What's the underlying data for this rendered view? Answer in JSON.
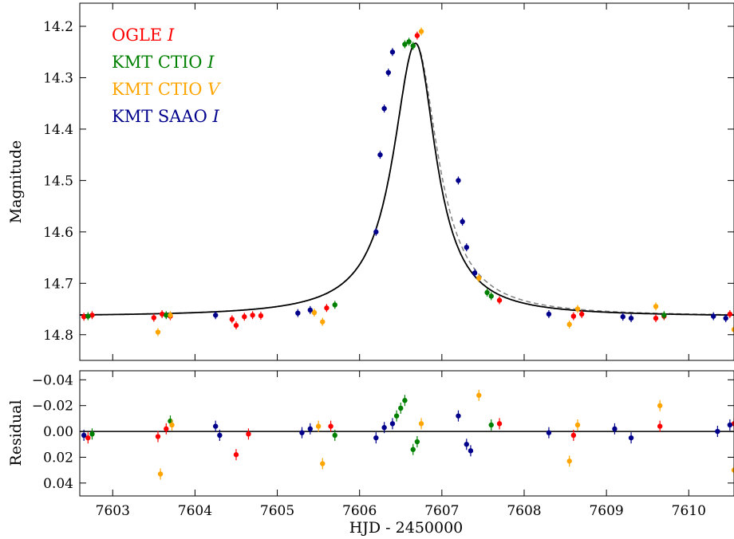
{
  "chart_data": {
    "type": "scatter",
    "xlabel": "HJD - 2450000",
    "xlim": [
      7602.6,
      7610.55
    ],
    "x_ticks": [
      "7603",
      "7604",
      "7605",
      "7606",
      "7607",
      "7608",
      "7609",
      "7610"
    ],
    "legend_placement": "top-left",
    "series": [
      {
        "name": "OGLE",
        "italic": "I",
        "color": "#ff0000"
      },
      {
        "name": "KMT CTIO",
        "italic": "I",
        "color": "#008000"
      },
      {
        "name": "KMT CTIO",
        "italic": "V",
        "color": "#ffa500"
      },
      {
        "name": "KMT SAAO",
        "italic": "I",
        "color": "#00008b"
      }
    ],
    "panels": [
      {
        "id": "light-curve",
        "ylabel": "Magnitude",
        "ylim": [
          14.85,
          14.155
        ],
        "inverted": true,
        "y_ticks": [
          "14.2",
          "14.3",
          "14.4",
          "14.5",
          "14.6",
          "14.7",
          "14.8"
        ],
        "model": {
          "baseline": 14.765,
          "peak_time": 7606.68,
          "peak_mag": 14.233,
          "width_before": 0.33,
          "width_after": 0.3,
          "color_solid": "#000000",
          "color_dashed": "#808080"
        },
        "data": [
          {
            "series": 0,
            "x": 7602.65,
            "y": 14.765
          },
          {
            "series": 0,
            "x": 7602.75,
            "y": 14.762
          },
          {
            "series": 0,
            "x": 7603.5,
            "y": 14.767
          },
          {
            "series": 0,
            "x": 7603.6,
            "y": 14.76
          },
          {
            "series": 0,
            "x": 7603.7,
            "y": 14.764
          },
          {
            "series": 0,
            "x": 7604.45,
            "y": 14.77
          },
          {
            "series": 0,
            "x": 7604.5,
            "y": 14.782
          },
          {
            "series": 0,
            "x": 7604.6,
            "y": 14.765
          },
          {
            "series": 0,
            "x": 7604.7,
            "y": 14.762
          },
          {
            "series": 0,
            "x": 7604.8,
            "y": 14.763
          },
          {
            "series": 0,
            "x": 7605.6,
            "y": 14.748
          },
          {
            "series": 0,
            "x": 7606.7,
            "y": 14.218
          },
          {
            "series": 0,
            "x": 7607.7,
            "y": 14.733
          },
          {
            "series": 0,
            "x": 7608.6,
            "y": 14.764
          },
          {
            "series": 0,
            "x": 7608.7,
            "y": 14.76
          },
          {
            "series": 0,
            "x": 7609.6,
            "y": 14.768
          },
          {
            "series": 0,
            "x": 7609.7,
            "y": 14.764
          },
          {
            "series": 0,
            "x": 7610.5,
            "y": 14.76
          },
          {
            "series": 1,
            "x": 7602.7,
            "y": 14.764
          },
          {
            "series": 1,
            "x": 7603.65,
            "y": 14.762
          },
          {
            "series": 1,
            "x": 7605.7,
            "y": 14.742
          },
          {
            "series": 1,
            "x": 7606.55,
            "y": 14.235
          },
          {
            "series": 1,
            "x": 7606.6,
            "y": 14.23
          },
          {
            "series": 1,
            "x": 7606.65,
            "y": 14.238
          },
          {
            "series": 1,
            "x": 7607.55,
            "y": 14.718
          },
          {
            "series": 1,
            "x": 7607.6,
            "y": 14.725
          },
          {
            "series": 1,
            "x": 7609.7,
            "y": 14.762
          },
          {
            "series": 2,
            "x": 7603.55,
            "y": 14.795
          },
          {
            "series": 2,
            "x": 7603.7,
            "y": 14.762
          },
          {
            "series": 2,
            "x": 7605.45,
            "y": 14.757
          },
          {
            "series": 2,
            "x": 7605.55,
            "y": 14.775
          },
          {
            "series": 2,
            "x": 7606.75,
            "y": 14.21
          },
          {
            "series": 2,
            "x": 7607.45,
            "y": 14.69
          },
          {
            "series": 2,
            "x": 7608.55,
            "y": 14.78
          },
          {
            "series": 2,
            "x": 7608.65,
            "y": 14.75
          },
          {
            "series": 2,
            "x": 7609.6,
            "y": 14.745
          },
          {
            "series": 2,
            "x": 7610.55,
            "y": 14.79
          },
          {
            "series": 3,
            "x": 7604.25,
            "y": 14.762
          },
          {
            "series": 3,
            "x": 7605.25,
            "y": 14.758
          },
          {
            "series": 3,
            "x": 7605.4,
            "y": 14.752
          },
          {
            "series": 3,
            "x": 7606.2,
            "y": 14.6
          },
          {
            "series": 3,
            "x": 7606.25,
            "y": 14.45
          },
          {
            "series": 3,
            "x": 7606.3,
            "y": 14.36
          },
          {
            "series": 3,
            "x": 7606.35,
            "y": 14.29
          },
          {
            "series": 3,
            "x": 7606.4,
            "y": 14.25
          },
          {
            "series": 3,
            "x": 7607.2,
            "y": 14.5
          },
          {
            "series": 3,
            "x": 7607.25,
            "y": 14.58
          },
          {
            "series": 3,
            "x": 7607.3,
            "y": 14.63
          },
          {
            "series": 3,
            "x": 7607.4,
            "y": 14.68
          },
          {
            "series": 3,
            "x": 7608.3,
            "y": 14.76
          },
          {
            "series": 3,
            "x": 7609.2,
            "y": 14.765
          },
          {
            "series": 3,
            "x": 7609.3,
            "y": 14.768
          },
          {
            "series": 3,
            "x": 7610.3,
            "y": 14.764
          },
          {
            "series": 3,
            "x": 7610.45,
            "y": 14.768
          }
        ]
      },
      {
        "id": "residual",
        "ylabel": "Residual",
        "ylim": [
          0.05,
          -0.047
        ],
        "inverted": true,
        "y_ticks": [
          "−0.04",
          "−0.02",
          "0.00",
          "0.02",
          "0.04"
        ],
        "data": [
          {
            "series": 0,
            "x": 7602.7,
            "y": 0.005
          },
          {
            "series": 0,
            "x": 7603.55,
            "y": 0.004
          },
          {
            "series": 0,
            "x": 7603.65,
            "y": -0.002
          },
          {
            "series": 0,
            "x": 7604.5,
            "y": 0.018
          },
          {
            "series": 0,
            "x": 7604.65,
            "y": 0.002
          },
          {
            "series": 0,
            "x": 7605.65,
            "y": -0.004
          },
          {
            "series": 0,
            "x": 7607.7,
            "y": -0.006
          },
          {
            "series": 0,
            "x": 7608.6,
            "y": 0.003
          },
          {
            "series": 0,
            "x": 7609.65,
            "y": -0.004
          },
          {
            "series": 0,
            "x": 7610.55,
            "y": -0.006
          },
          {
            "series": 1,
            "x": 7602.75,
            "y": 0.002
          },
          {
            "series": 1,
            "x": 7603.7,
            "y": -0.008
          },
          {
            "series": 1,
            "x": 7605.7,
            "y": 0.003
          },
          {
            "series": 1,
            "x": 7606.45,
            "y": -0.012
          },
          {
            "series": 1,
            "x": 7606.5,
            "y": -0.018
          },
          {
            "series": 1,
            "x": 7606.55,
            "y": -0.024
          },
          {
            "series": 1,
            "x": 7606.65,
            "y": 0.014
          },
          {
            "series": 1,
            "x": 7606.7,
            "y": 0.008
          },
          {
            "series": 1,
            "x": 7607.6,
            "y": -0.005
          },
          {
            "series": 2,
            "x": 7603.58,
            "y": 0.033
          },
          {
            "series": 2,
            "x": 7603.72,
            "y": -0.005
          },
          {
            "series": 2,
            "x": 7605.5,
            "y": -0.004
          },
          {
            "series": 2,
            "x": 7605.55,
            "y": 0.025
          },
          {
            "series": 2,
            "x": 7606.75,
            "y": -0.006
          },
          {
            "series": 2,
            "x": 7607.45,
            "y": -0.028
          },
          {
            "series": 2,
            "x": 7608.55,
            "y": 0.023
          },
          {
            "series": 2,
            "x": 7608.65,
            "y": -0.005
          },
          {
            "series": 2,
            "x": 7609.65,
            "y": -0.02
          },
          {
            "series": 2,
            "x": 7610.55,
            "y": 0.03
          },
          {
            "series": 3,
            "x": 7602.65,
            "y": 0.003
          },
          {
            "series": 3,
            "x": 7604.25,
            "y": -0.004
          },
          {
            "series": 3,
            "x": 7604.3,
            "y": 0.003
          },
          {
            "series": 3,
            "x": 7605.3,
            "y": 0.001
          },
          {
            "series": 3,
            "x": 7605.4,
            "y": -0.002
          },
          {
            "series": 3,
            "x": 7606.2,
            "y": 0.005
          },
          {
            "series": 3,
            "x": 7606.3,
            "y": -0.003
          },
          {
            "series": 3,
            "x": 7606.4,
            "y": -0.006
          },
          {
            "series": 3,
            "x": 7607.2,
            "y": -0.012
          },
          {
            "series": 3,
            "x": 7607.3,
            "y": 0.01
          },
          {
            "series": 3,
            "x": 7607.35,
            "y": 0.015
          },
          {
            "series": 3,
            "x": 7608.3,
            "y": 0.001
          },
          {
            "series": 3,
            "x": 7609.1,
            "y": -0.002
          },
          {
            "series": 3,
            "x": 7609.3,
            "y": 0.005
          },
          {
            "series": 3,
            "x": 7610.35,
            "y": 0.0
          },
          {
            "series": 3,
            "x": 7610.5,
            "y": -0.005
          }
        ]
      }
    ]
  }
}
